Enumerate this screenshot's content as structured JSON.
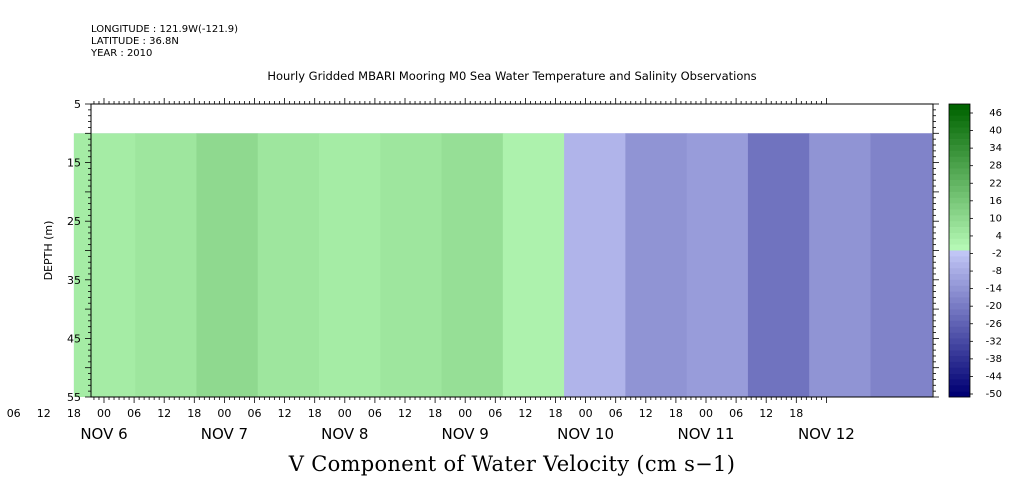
{
  "meta": {
    "longitude": "LONGITUDE : 121.9W(-121.9)",
    "latitude": "LATITUDE : 36.8N",
    "year": "YEAR : 2010"
  },
  "chart_data": {
    "type": "heatmap",
    "title": "Hourly Gridded MBARI Mooring M0 Sea Water Temperature and Salinity Observations",
    "xlabel": "V Component of Water Velocity (cm s−1)",
    "ylabel": "DEPTH (m)",
    "y_ticks": [
      5,
      15,
      25,
      35,
      45,
      55
    ],
    "ylim": [
      55,
      5
    ],
    "x_hour_ticks": [
      "00",
      "06",
      "12",
      "18",
      "00",
      "06",
      "12",
      "18",
      "00",
      "06",
      "12",
      "18",
      "00",
      "06",
      "12",
      "18",
      "00",
      "06",
      "12",
      "18",
      "00",
      "06",
      "12",
      "18",
      "00",
      "06",
      "12",
      "18"
    ],
    "x_day_labels": [
      "NOV  6",
      "NOV  7",
      "NOV  8",
      "NOV  9",
      "NOV 10",
      "NOV 11",
      "NOV 12"
    ],
    "x_range_days": [
      "2010-11-05 18:00",
      "2010-11-12 21:00"
    ],
    "data_depth_range": [
      10,
      55
    ],
    "colorbar": {
      "levels": [
        48,
        46,
        44,
        42,
        40,
        38,
        36,
        34,
        32,
        30,
        28,
        26,
        24,
        22,
        20,
        18,
        16,
        14,
        12,
        10,
        8,
        6,
        4,
        2,
        0,
        -2,
        -4,
        -6,
        -8,
        -10,
        -12,
        -14,
        -16,
        -18,
        -20,
        -22,
        -24,
        -26,
        -28,
        -30,
        -32,
        -34,
        -36,
        -38,
        -40,
        -42,
        -44,
        -46,
        -48,
        -50
      ],
      "labels": [
        "46",
        "40",
        "34",
        "28",
        "22",
        "16",
        "10",
        "4",
        "-2",
        "-8",
        "-14",
        "-20",
        "-26",
        "-32",
        "-38",
        "-44",
        "-50"
      ]
    },
    "values_by_segment": [
      {
        "time": "NOV 6 06",
        "v": 4
      },
      {
        "time": "NOV 6 15",
        "v": 6
      },
      {
        "time": "NOV 7 00",
        "v": 10
      },
      {
        "time": "NOV 7 12",
        "v": 6
      },
      {
        "time": "NOV 8 00",
        "v": 4
      },
      {
        "time": "NOV 8 12",
        "v": 6
      },
      {
        "time": "NOV 9 00",
        "v": 8
      },
      {
        "time": "NOV 9 12",
        "v": 2
      },
      {
        "time": "NOV 10 00",
        "v": -6
      },
      {
        "time": "NOV 10 12",
        "v": -14
      },
      {
        "time": "NOV 11 00",
        "v": -12
      },
      {
        "time": "NOV 11 12",
        "v": -22
      },
      {
        "time": "NOV 12 00",
        "v": -14
      },
      {
        "time": "NOV 12 12",
        "v": -18
      }
    ]
  }
}
